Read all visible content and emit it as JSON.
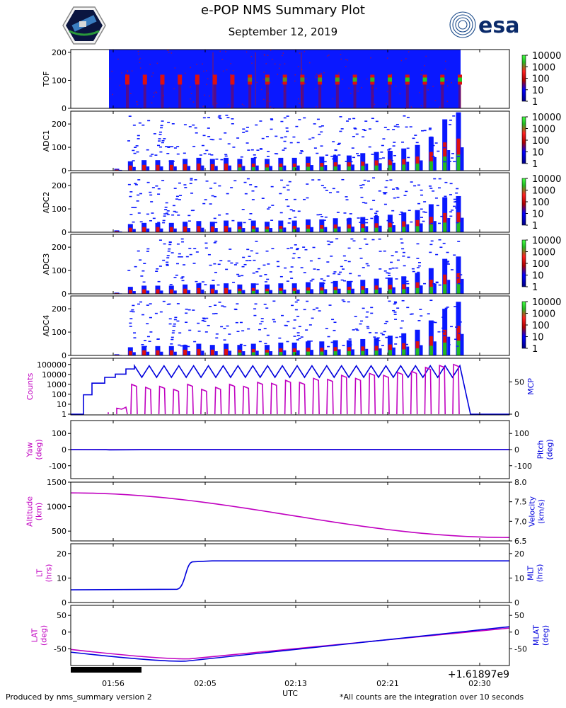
{
  "header": {
    "title": "e-POP NMS Summary Plot",
    "date": "September 12, 2019",
    "logo_right_text": "esa"
  },
  "footer": {
    "left": "Produced by nms_summary version 2",
    "right": "*All counts are the integration over 10 seconds"
  },
  "colors": {
    "magenta": "#c000c0",
    "blue": "#0000dd",
    "green": "#22bb22",
    "red": "#dd0000"
  },
  "chart_data": [
    {
      "type": "heatmap",
      "name": "TOF",
      "ylabel": "TOF",
      "ylim": [
        0,
        210
      ],
      "yticks": [
        0,
        100,
        200
      ],
      "colorbar": {
        "ticks": [
          "10000",
          "1000",
          "100",
          "10",
          "1"
        ]
      }
    },
    {
      "type": "heatmap",
      "name": "ADC1",
      "ylabel": "ADC1",
      "ylim": [
        0,
        255
      ],
      "yticks": [
        0,
        100,
        200
      ],
      "colorbar": {
        "ticks": [
          "10000",
          "1000",
          "100",
          "10",
          "1"
        ]
      },
      "peak_heights": [
        8,
        40,
        45,
        45,
        45,
        50,
        55,
        50,
        55,
        50,
        55,
        50,
        55,
        55,
        60,
        60,
        65,
        65,
        75,
        80,
        85,
        95,
        110,
        145,
        220,
        250
      ]
    },
    {
      "type": "heatmap",
      "name": "ADC2",
      "ylabel": "ADC2",
      "ylim": [
        0,
        255
      ],
      "yticks": [
        0,
        100,
        200
      ],
      "colorbar": {
        "ticks": [
          "10000",
          "1000",
          "100",
          "10",
          "1"
        ]
      },
      "peak_heights": [
        8,
        35,
        40,
        40,
        40,
        45,
        48,
        45,
        50,
        45,
        50,
        45,
        50,
        50,
        55,
        55,
        60,
        60,
        65,
        70,
        75,
        85,
        95,
        120,
        150,
        155
      ]
    },
    {
      "type": "heatmap",
      "name": "ADC3",
      "ylabel": "ADC3",
      "ylim": [
        0,
        255
      ],
      "yticks": [
        0,
        100,
        200
      ],
      "colorbar": {
        "ticks": [
          "10000",
          "1000",
          "100",
          "10",
          "1"
        ]
      },
      "peak_heights": [
        5,
        30,
        35,
        35,
        35,
        40,
        45,
        40,
        45,
        40,
        45,
        40,
        45,
        45,
        50,
        50,
        55,
        55,
        60,
        65,
        70,
        75,
        90,
        110,
        150,
        160
      ]
    },
    {
      "type": "heatmap",
      "name": "ADC4",
      "ylabel": "ADC4",
      "ylim": [
        0,
        255
      ],
      "yticks": [
        0,
        100,
        200
      ],
      "colorbar": {
        "ticks": [
          "10000",
          "1000",
          "100",
          "10",
          "1"
        ]
      },
      "peak_heights": [
        5,
        35,
        40,
        40,
        40,
        45,
        50,
        45,
        50,
        45,
        50,
        45,
        55,
        55,
        60,
        60,
        65,
        65,
        70,
        75,
        85,
        95,
        110,
        150,
        200,
        230
      ]
    },
    {
      "type": "line",
      "name": "counts_mcp",
      "ylabel_left": "Counts",
      "ylabel_right": "MCP",
      "yticks_left": [
        "100000",
        "10000",
        "1000",
        "100",
        "10",
        "1"
      ],
      "yticks_right": [
        "50",
        "0"
      ],
      "series": [
        {
          "name": "Counts",
          "color": "magenta",
          "log_range": [
            0,
            5.3
          ],
          "peaks_log": [
            3.0,
            2.7,
            2.8,
            2.5,
            3.0,
            2.5,
            2.7,
            3.0,
            2.8,
            3.2,
            3.1,
            3.4,
            3.2,
            3.6,
            3.5,
            3.9,
            3.6,
            4.1,
            3.9,
            4.2,
            4.3,
            4.7,
            4.9,
            5.0
          ]
        },
        {
          "name": "MCP",
          "color": "blue",
          "range": [
            0,
            80
          ],
          "steps": [
            0,
            30,
            48,
            57,
            62,
            70
          ]
        }
      ]
    },
    {
      "type": "line",
      "name": "attitude",
      "ylabel_left": "Yaw\n(deg)",
      "ylabel_right": "Pitch\n(deg)",
      "ylim": [
        -180,
        180
      ],
      "yticks": [
        -100,
        0,
        100
      ],
      "series": [
        {
          "name": "Yaw",
          "color": "magenta"
        },
        {
          "name": "Pitch",
          "color": "blue"
        }
      ]
    },
    {
      "type": "line",
      "name": "altitude_velocity",
      "ylabel_left": "Altitude\n(km)",
      "ylabel_right": "Velocity\n(km/s)",
      "ylim_left": [
        300,
        1500
      ],
      "yticks_left": [
        500,
        1000,
        1500
      ],
      "ylim_right": [
        6.5,
        8.0
      ],
      "yticks_right": [
        "6.5",
        "7.0",
        "7.5",
        "8.0"
      ],
      "series": [
        {
          "name": "Altitude",
          "color": "magenta",
          "start": 1280,
          "end": 370
        }
      ]
    },
    {
      "type": "line",
      "name": "lt_mlt",
      "ylabel_left": "LT\n(hrs)",
      "ylabel_right": "MLT\n(hrs)",
      "ylim": [
        0,
        24
      ],
      "yticks": [
        0,
        10,
        20
      ],
      "series": [
        {
          "name": "MLT",
          "color": "blue",
          "before": 5.2,
          "after": 17
        }
      ]
    },
    {
      "type": "line",
      "name": "lat_mlat",
      "ylabel_left": "LAT\n(deg)",
      "ylabel_right": "MLAT\n(deg)",
      "ylim": [
        -100,
        80
      ],
      "yticks": [
        -50,
        0,
        50
      ],
      "series": [
        {
          "name": "LAT",
          "color": "magenta",
          "start": -52,
          "min": -80,
          "end": 12
        },
        {
          "name": "MLAT",
          "color": "blue",
          "start": -60,
          "min": -87,
          "end": 16
        }
      ]
    }
  ],
  "xaxis": {
    "ticks": [
      "01:56",
      "02:05",
      "02:13",
      "02:21",
      "02:30"
    ],
    "label": "UTC",
    "offset_text": "+1.61897e9"
  }
}
